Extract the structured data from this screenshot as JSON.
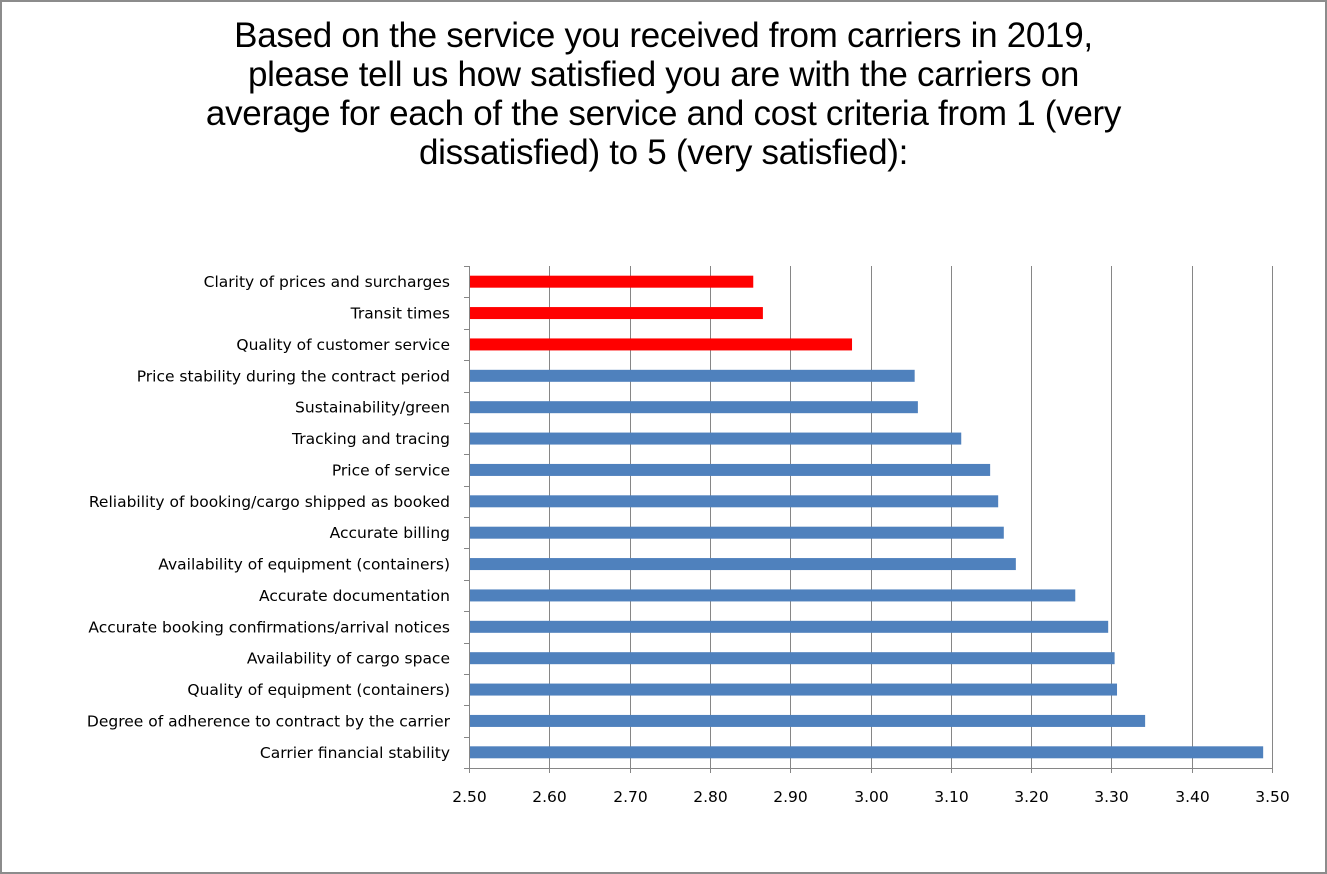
{
  "chart_data": {
    "type": "bar",
    "orientation": "horizontal",
    "title": "Based on the service you received from carriers in 2019, please tell us how satisfied you are with the carriers on average for each of the service and cost criteria from 1 (very dissatisfied) to 5 (very satisfied):",
    "title_lines": [
      "Based on the service you received from carriers in 2019,",
      "please tell us how satisfied you are with the carriers on",
      "average for each of the service and cost criteria from 1 (very",
      "dissatisfied) to 5 (very satisfied):"
    ],
    "xlabel": "",
    "ylabel": "",
    "xlim": [
      2.5,
      3.5
    ],
    "x_ticks": [
      "2.50",
      "2.60",
      "2.70",
      "2.80",
      "2.90",
      "3.00",
      "3.10",
      "3.20",
      "3.30",
      "3.40",
      "3.50"
    ],
    "grid": "vertical",
    "legend": "none",
    "categories": [
      "Clarity of prices and surcharges",
      "Transit times",
      "Quality of customer service",
      "Price stability during the contract period",
      "Sustainability/green",
      "Tracking and tracing",
      "Price of service",
      "Reliability of booking/cargo shipped as booked",
      "Accurate billing",
      "Availability of equipment (containers)",
      "Accurate documentation",
      "Accurate booking confirmations/arrival notices",
      "Availability of cargo space",
      "Quality of equipment (containers)",
      "Degree of adherence to contract by the carrier",
      "Carrier financial stability"
    ],
    "values": [
      2.854,
      2.866,
      2.977,
      3.055,
      3.059,
      3.113,
      3.149,
      3.159,
      3.166,
      3.181,
      3.255,
      3.296,
      3.304,
      3.307,
      3.342,
      3.489
    ],
    "highlight": [
      true,
      true,
      true,
      false,
      false,
      false,
      false,
      false,
      false,
      false,
      false,
      false,
      false,
      false,
      false,
      false
    ],
    "colors": {
      "default": "#4f81bd",
      "highlight": "#ff0000",
      "grid": "#868686"
    }
  }
}
